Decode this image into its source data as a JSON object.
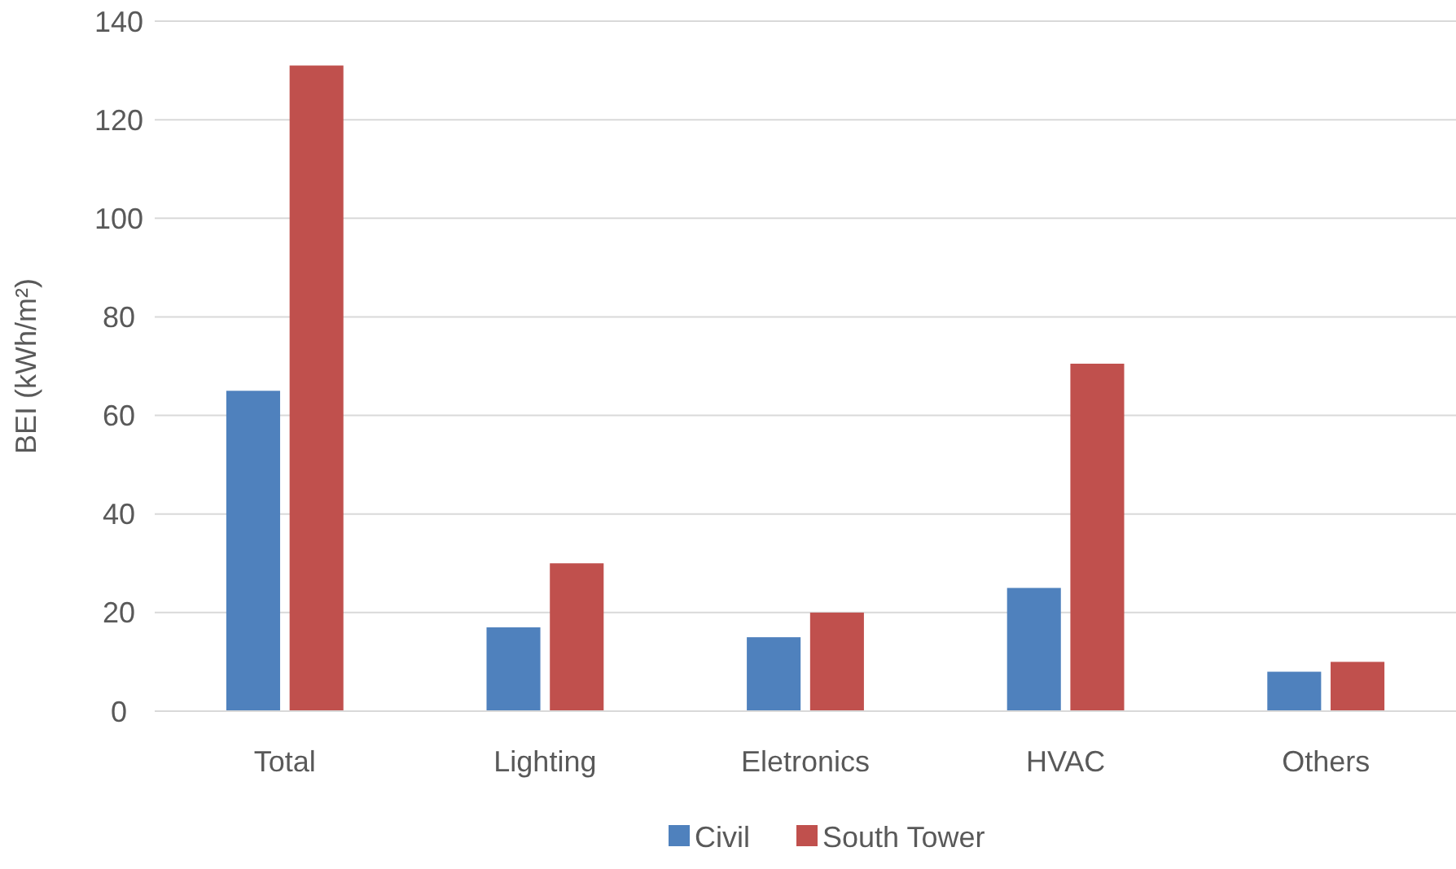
{
  "chart_data": {
    "type": "bar",
    "ylabel": "BEI (kWh/m²)",
    "categories": [
      "Total",
      "Lighting",
      "Eletronics",
      "HVAC",
      "Others"
    ],
    "series": [
      {
        "name": "Civil",
        "color": "#4f81bd",
        "values": [
          65,
          17,
          15,
          25,
          8
        ]
      },
      {
        "name": "South Tower",
        "color": "#c0504d",
        "values": [
          131,
          30,
          20,
          70.5,
          10
        ]
      }
    ],
    "ylim": [
      0,
      140
    ],
    "yticks": [
      0,
      20,
      40,
      60,
      80,
      100,
      120,
      140
    ],
    "grid": "y",
    "legend": "bottom"
  }
}
